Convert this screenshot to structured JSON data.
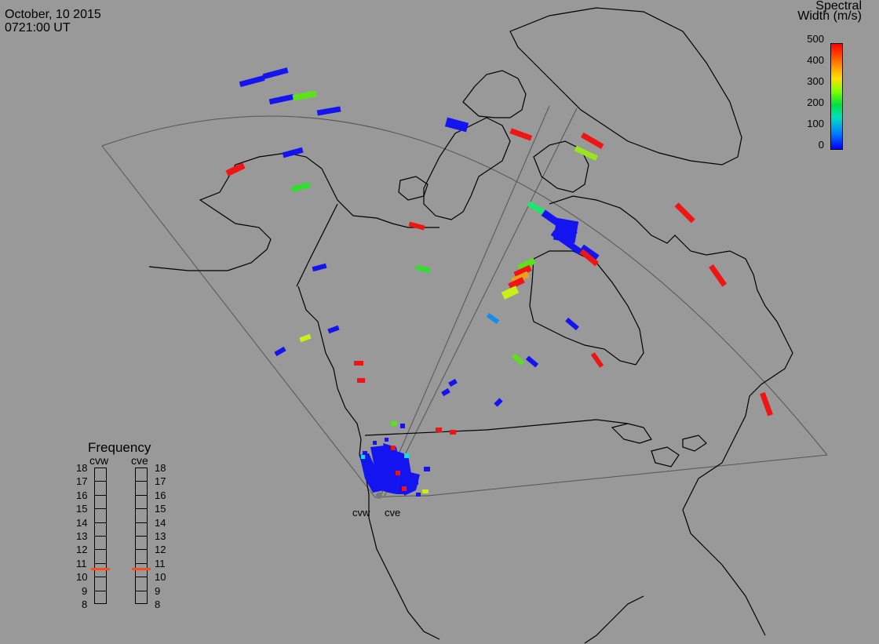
{
  "header": {
    "date": "October, 10 2015",
    "time": "0721:00 UT"
  },
  "colorbar": {
    "title_line1": "Spectral",
    "title_line2": "Width (m/s)",
    "ticks": [
      "500",
      "400",
      "300",
      "200",
      "100",
      "0"
    ],
    "min": 0,
    "max": 500
  },
  "frequency": {
    "title": "Frequency",
    "radars": [
      "cvw",
      "cve"
    ],
    "ticks": [
      "18",
      "17",
      "16",
      "15",
      "14",
      "13",
      "12",
      "11",
      "10",
      "9",
      "8"
    ],
    "values_mhz": {
      "cvw": 10.6,
      "cve": 10.6
    },
    "color": "#ff4a1c"
  },
  "sites": [
    "cvw",
    "cve"
  ],
  "colors": {
    "background": "#999999",
    "land_outline": "#000000",
    "fov_outline": "#555555"
  }
}
